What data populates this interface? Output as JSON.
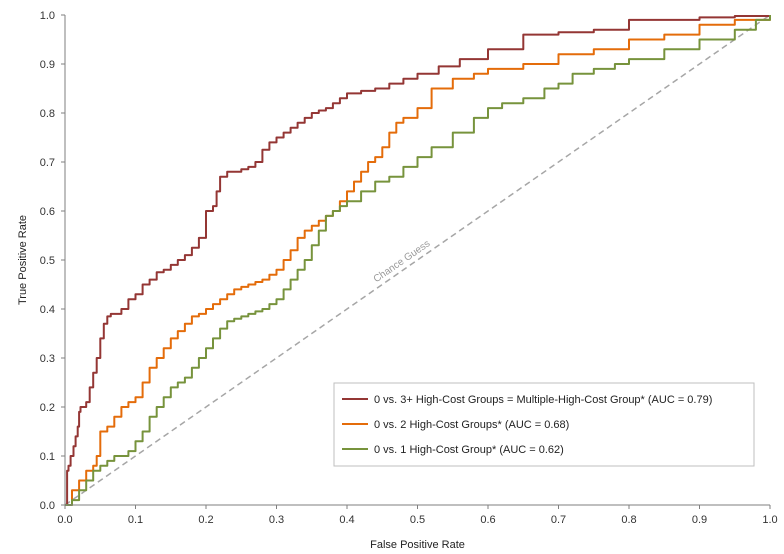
{
  "chart_data": {
    "type": "line",
    "title": "",
    "xlabel": "False Positive Rate",
    "ylabel": "True Positive Rate",
    "xlim": [
      0,
      1
    ],
    "ylim": [
      0,
      1
    ],
    "xticks": [
      "0.0",
      "0.1",
      "0.2",
      "0.3",
      "0.4",
      "0.5",
      "0.6",
      "0.7",
      "0.8",
      "0.9",
      "1.0"
    ],
    "yticks": [
      "0.0",
      "0.1",
      "0.2",
      "0.3",
      "0.4",
      "0.5",
      "0.6",
      "0.7",
      "0.8",
      "0.9",
      "1.0"
    ],
    "grid": false,
    "legend_position": "bottom-right",
    "annotation": "Chance Guess",
    "colors": {
      "reference": "#a6a6a6",
      "axis": "#7f7f7f"
    },
    "series": [
      {
        "name": "0 vs. 3+ High-Cost Groups = Multiple-High-Cost Group* (AUC = 0.79)",
        "color": "#943634",
        "x": [
          0,
          0.003,
          0.005,
          0.008,
          0.012,
          0.015,
          0.018,
          0.02,
          0.022,
          0.025,
          0.03,
          0.035,
          0.04,
          0.045,
          0.05,
          0.055,
          0.06,
          0.065,
          0.07,
          0.08,
          0.09,
          0.1,
          0.11,
          0.12,
          0.13,
          0.14,
          0.15,
          0.16,
          0.17,
          0.18,
          0.19,
          0.2,
          0.21,
          0.215,
          0.22,
          0.23,
          0.24,
          0.25,
          0.26,
          0.27,
          0.28,
          0.29,
          0.3,
          0.31,
          0.32,
          0.33,
          0.34,
          0.35,
          0.36,
          0.37,
          0.38,
          0.39,
          0.4,
          0.42,
          0.44,
          0.46,
          0.48,
          0.5,
          0.53,
          0.56,
          0.6,
          0.65,
          0.7,
          0.75,
          0.8,
          0.9,
          0.95,
          1.0
        ],
        "y": [
          0,
          0.07,
          0.08,
          0.1,
          0.12,
          0.14,
          0.16,
          0.19,
          0.2,
          0.2,
          0.21,
          0.24,
          0.27,
          0.3,
          0.34,
          0.37,
          0.385,
          0.39,
          0.39,
          0.4,
          0.42,
          0.43,
          0.45,
          0.46,
          0.475,
          0.48,
          0.49,
          0.5,
          0.51,
          0.525,
          0.545,
          0.6,
          0.61,
          0.64,
          0.67,
          0.68,
          0.68,
          0.685,
          0.69,
          0.7,
          0.725,
          0.74,
          0.75,
          0.76,
          0.77,
          0.78,
          0.79,
          0.8,
          0.805,
          0.81,
          0.82,
          0.83,
          0.84,
          0.845,
          0.85,
          0.86,
          0.87,
          0.88,
          0.895,
          0.91,
          0.93,
          0.96,
          0.965,
          0.97,
          0.99,
          0.995,
          0.998,
          1.0
        ]
      },
      {
        "name": "0 vs. 2 High-Cost Groups* (AUC = 0.68)",
        "color": "#e46c0a",
        "x": [
          0,
          0.01,
          0.02,
          0.03,
          0.04,
          0.045,
          0.05,
          0.06,
          0.07,
          0.08,
          0.09,
          0.1,
          0.11,
          0.12,
          0.13,
          0.14,
          0.15,
          0.16,
          0.17,
          0.18,
          0.19,
          0.2,
          0.21,
          0.22,
          0.23,
          0.24,
          0.25,
          0.26,
          0.27,
          0.28,
          0.29,
          0.3,
          0.31,
          0.32,
          0.33,
          0.34,
          0.35,
          0.36,
          0.37,
          0.38,
          0.39,
          0.4,
          0.41,
          0.42,
          0.43,
          0.44,
          0.45,
          0.46,
          0.47,
          0.48,
          0.5,
          0.52,
          0.55,
          0.58,
          0.6,
          0.65,
          0.7,
          0.75,
          0.8,
          0.85,
          0.9,
          0.95,
          1.0
        ],
        "y": [
          0,
          0.03,
          0.05,
          0.07,
          0.08,
          0.1,
          0.15,
          0.16,
          0.18,
          0.2,
          0.21,
          0.22,
          0.25,
          0.28,
          0.3,
          0.32,
          0.34,
          0.355,
          0.37,
          0.385,
          0.39,
          0.4,
          0.41,
          0.42,
          0.43,
          0.44,
          0.445,
          0.45,
          0.455,
          0.46,
          0.47,
          0.48,
          0.5,
          0.52,
          0.545,
          0.56,
          0.57,
          0.58,
          0.59,
          0.6,
          0.62,
          0.64,
          0.66,
          0.68,
          0.7,
          0.71,
          0.73,
          0.76,
          0.78,
          0.79,
          0.81,
          0.85,
          0.87,
          0.88,
          0.89,
          0.9,
          0.92,
          0.93,
          0.95,
          0.96,
          0.98,
          0.99,
          1.0
        ]
      },
      {
        "name": "0 vs. 1 High-Cost Group* (AUC = 0.62)",
        "color": "#77933c",
        "x": [
          0,
          0.01,
          0.02,
          0.03,
          0.04,
          0.05,
          0.06,
          0.07,
          0.08,
          0.09,
          0.1,
          0.11,
          0.12,
          0.13,
          0.14,
          0.15,
          0.16,
          0.17,
          0.18,
          0.19,
          0.2,
          0.21,
          0.22,
          0.23,
          0.24,
          0.25,
          0.26,
          0.27,
          0.28,
          0.29,
          0.3,
          0.31,
          0.32,
          0.33,
          0.34,
          0.35,
          0.36,
          0.37,
          0.38,
          0.39,
          0.4,
          0.42,
          0.44,
          0.46,
          0.48,
          0.5,
          0.52,
          0.55,
          0.58,
          0.6,
          0.62,
          0.65,
          0.68,
          0.7,
          0.72,
          0.75,
          0.78,
          0.8,
          0.85,
          0.9,
          0.95,
          0.98,
          1.0
        ],
        "y": [
          0,
          0.01,
          0.03,
          0.05,
          0.07,
          0.08,
          0.09,
          0.1,
          0.1,
          0.11,
          0.13,
          0.15,
          0.18,
          0.2,
          0.22,
          0.24,
          0.25,
          0.26,
          0.28,
          0.3,
          0.32,
          0.34,
          0.36,
          0.375,
          0.38,
          0.385,
          0.39,
          0.395,
          0.4,
          0.41,
          0.42,
          0.44,
          0.46,
          0.48,
          0.5,
          0.53,
          0.56,
          0.59,
          0.6,
          0.61,
          0.62,
          0.64,
          0.66,
          0.67,
          0.69,
          0.71,
          0.73,
          0.76,
          0.79,
          0.81,
          0.82,
          0.83,
          0.85,
          0.86,
          0.88,
          0.89,
          0.9,
          0.91,
          0.93,
          0.95,
          0.97,
          0.99,
          1.0
        ]
      }
    ]
  }
}
